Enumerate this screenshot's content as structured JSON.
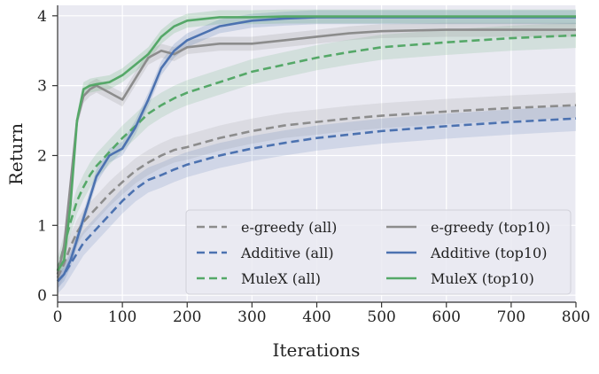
{
  "chart_data": {
    "type": "line",
    "xlabel": "Iterations",
    "ylabel": "Return",
    "xlim": [
      0,
      800
    ],
    "ylim": [
      -0.1,
      4.15
    ],
    "xticks": [
      "0",
      "100",
      "200",
      "300",
      "400",
      "500",
      "600",
      "700",
      "800"
    ],
    "yticks": [
      "0",
      "1",
      "2",
      "3",
      "4"
    ],
    "grid": true,
    "legend_position": "bottom-right",
    "legend_columns": 2,
    "x": [
      0,
      10,
      20,
      30,
      40,
      50,
      60,
      80,
      100,
      120,
      140,
      160,
      180,
      200,
      250,
      300,
      350,
      400,
      450,
      500,
      600,
      700,
      800
    ],
    "series": [
      {
        "name": "e-greedy (all)",
        "style": "dashed",
        "color": "#8c8c8c",
        "values": [
          0.25,
          0.45,
          0.7,
          0.9,
          1.05,
          1.15,
          1.25,
          1.45,
          1.62,
          1.78,
          1.9,
          2.0,
          2.08,
          2.12,
          2.25,
          2.35,
          2.43,
          2.48,
          2.53,
          2.57,
          2.63,
          2.68,
          2.72
        ]
      },
      {
        "name": "Additive (all)",
        "style": "dashed",
        "color": "#4c72b0",
        "values": [
          0.2,
          0.3,
          0.45,
          0.6,
          0.75,
          0.85,
          0.95,
          1.15,
          1.35,
          1.52,
          1.65,
          1.72,
          1.8,
          1.87,
          2.0,
          2.1,
          2.18,
          2.25,
          2.3,
          2.35,
          2.42,
          2.48,
          2.53
        ]
      },
      {
        "name": "MuleX (all)",
        "style": "dashed",
        "color": "#55a868",
        "values": [
          0.35,
          0.7,
          1.05,
          1.35,
          1.55,
          1.72,
          1.85,
          2.05,
          2.25,
          2.42,
          2.6,
          2.72,
          2.82,
          2.9,
          3.05,
          3.2,
          3.3,
          3.4,
          3.48,
          3.55,
          3.62,
          3.68,
          3.72
        ]
      },
      {
        "name": "e-greedy (top10)",
        "style": "solid",
        "color": "#8c8c8c",
        "values": [
          0.3,
          0.7,
          1.6,
          2.5,
          2.85,
          2.95,
          3.0,
          2.9,
          2.8,
          3.1,
          3.4,
          3.5,
          3.45,
          3.55,
          3.6,
          3.6,
          3.65,
          3.7,
          3.75,
          3.78,
          3.8,
          3.8,
          3.8
        ]
      },
      {
        "name": "Additive (top10)",
        "style": "solid",
        "color": "#4c72b0",
        "values": [
          0.2,
          0.3,
          0.5,
          0.8,
          1.1,
          1.4,
          1.7,
          2.0,
          2.1,
          2.4,
          2.8,
          3.25,
          3.5,
          3.65,
          3.85,
          3.93,
          3.96,
          3.98,
          3.98,
          3.98,
          3.98,
          3.98,
          3.98
        ]
      },
      {
        "name": "MuleX (top10)",
        "style": "solid",
        "color": "#55a868",
        "values": [
          0.35,
          0.5,
          1.3,
          2.5,
          2.95,
          3.0,
          3.02,
          3.05,
          3.15,
          3.3,
          3.45,
          3.7,
          3.85,
          3.93,
          3.98,
          3.98,
          3.99,
          3.99,
          3.99,
          3.99,
          3.99,
          3.99,
          3.99
        ]
      }
    ]
  }
}
